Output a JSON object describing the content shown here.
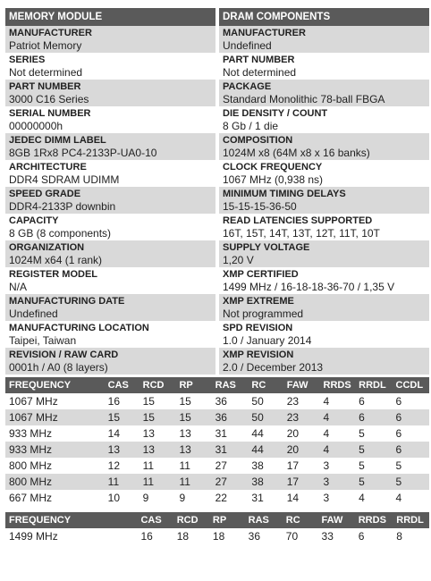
{
  "left_header": "MEMORY MODULE",
  "right_header": "DRAM COMPONENTS",
  "left": [
    {
      "label": "MANUFACTURER",
      "value": "Patriot Memory"
    },
    {
      "label": "SERIES",
      "value": "Not determined"
    },
    {
      "label": "PART NUMBER",
      "value": "3000 C16 Series"
    },
    {
      "label": "SERIAL NUMBER",
      "value": "00000000h"
    },
    {
      "label": "JEDEC DIMM LABEL",
      "value": "8GB 1Rx8 PC4-2133P-UA0-10"
    },
    {
      "label": "ARCHITECTURE",
      "value": "DDR4 SDRAM UDIMM"
    },
    {
      "label": "SPEED GRADE",
      "value": "DDR4-2133P downbin"
    },
    {
      "label": "CAPACITY",
      "value": "8 GB (8 components)"
    },
    {
      "label": "ORGANIZATION",
      "value": "1024M x64 (1 rank)"
    },
    {
      "label": "REGISTER MODEL",
      "value": "N/A"
    },
    {
      "label": "MANUFACTURING DATE",
      "value": "Undefined"
    },
    {
      "label": "MANUFACTURING LOCATION",
      "value": "Taipei, Taiwan"
    },
    {
      "label": "REVISION / RAW CARD",
      "value": "0001h / A0 (8 layers)"
    }
  ],
  "right": [
    {
      "label": "MANUFACTURER",
      "value": "Undefined"
    },
    {
      "label": "PART NUMBER",
      "value": "Not determined"
    },
    {
      "label": "PACKAGE",
      "value": "Standard Monolithic 78-ball FBGA"
    },
    {
      "label": "DIE DENSITY / COUNT",
      "value": "8 Gb / 1 die"
    },
    {
      "label": "COMPOSITION",
      "value": "1024M x8 (64M x8 x 16 banks)"
    },
    {
      "label": "CLOCK FREQUENCY",
      "value": "1067 MHz (0,938 ns)"
    },
    {
      "label": "MINIMUM TIMING DELAYS",
      "value": "15-15-15-36-50"
    },
    {
      "label": "READ LATENCIES SUPPORTED",
      "value": "16T, 15T, 14T, 13T, 12T, 11T, 10T"
    },
    {
      "label": "SUPPLY VOLTAGE",
      "value": "1,20 V"
    },
    {
      "label": "XMP CERTIFIED",
      "value": "1499 MHz / 16-18-18-36-70 / 1,35 V"
    },
    {
      "label": "XMP EXTREME",
      "value": "Not programmed"
    },
    {
      "label": "SPD REVISION",
      "value": "1.0 / January 2014"
    },
    {
      "label": "XMP REVISION",
      "value": "2.0 / December 2013"
    }
  ],
  "jedec_table": {
    "headers": [
      "FREQUENCY",
      "CAS",
      "RCD",
      "RP",
      "RAS",
      "RC",
      "FAW",
      "RRDS",
      "RRDL",
      "CCDL"
    ],
    "rows": [
      [
        "1067 MHz",
        "16",
        "15",
        "15",
        "36",
        "50",
        "23",
        "4",
        "6",
        "6"
      ],
      [
        "1067 MHz",
        "15",
        "15",
        "15",
        "36",
        "50",
        "23",
        "4",
        "6",
        "6"
      ],
      [
        "933 MHz",
        "14",
        "13",
        "13",
        "31",
        "44",
        "20",
        "4",
        "5",
        "6"
      ],
      [
        "933 MHz",
        "13",
        "13",
        "13",
        "31",
        "44",
        "20",
        "4",
        "5",
        "6"
      ],
      [
        "800 MHz",
        "12",
        "11",
        "11",
        "27",
        "38",
        "17",
        "3",
        "5",
        "5"
      ],
      [
        "800 MHz",
        "11",
        "11",
        "11",
        "27",
        "38",
        "17",
        "3",
        "5",
        "5"
      ],
      [
        "667 MHz",
        "10",
        "9",
        "9",
        "22",
        "31",
        "14",
        "3",
        "4",
        "4"
      ]
    ]
  },
  "xmp_table": {
    "headers": [
      "FREQUENCY",
      "CAS",
      "RCD",
      "RP",
      "RAS",
      "RC",
      "FAW",
      "RRDS",
      "RRDL"
    ],
    "rows": [
      [
        "1499 MHz",
        "16",
        "18",
        "18",
        "36",
        "70",
        "33",
        "6",
        "8"
      ]
    ]
  }
}
